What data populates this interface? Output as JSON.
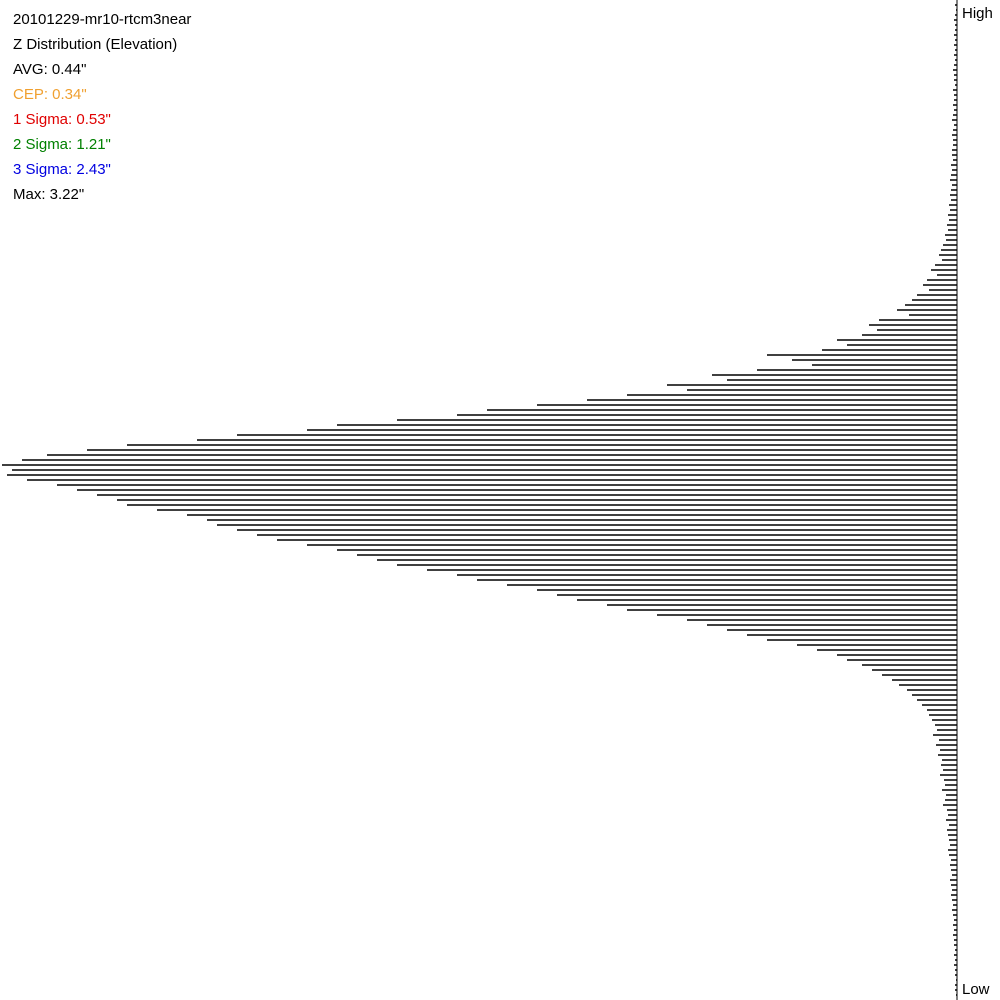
{
  "chart_data": {
    "type": "bar",
    "orientation": "horizontal",
    "title": "20101229-mr10-rtcm3near",
    "subtitle": "Z Distribution (Elevation)",
    "stats": [
      {
        "text": "AVG: 0.44\"",
        "color": "#000000"
      },
      {
        "text": "CEP: 0.34\"",
        "color": "#f0a030"
      },
      {
        "text": "1 Sigma: 0.53\"",
        "color": "#e00000"
      },
      {
        "text": "2 Sigma: 1.21\"",
        "color": "#008000"
      },
      {
        "text": "3 Sigma: 2.43\"",
        "color": "#0000e0"
      },
      {
        "text": "Max: 3.22\"",
        "color": "#000000"
      }
    ],
    "axis_top_label": "High",
    "axis_bottom_label": "Low",
    "color": "#000000",
    "xlim": [
      0,
      957
    ],
    "values": [
      2,
      1,
      2,
      3,
      2,
      2,
      3,
      2,
      3,
      2,
      3,
      2,
      3,
      4,
      3,
      3,
      2,
      4,
      3,
      3,
      4,
      3,
      4,
      5,
      3,
      4,
      5,
      4,
      4,
      5,
      5,
      4,
      6,
      5,
      6,
      7,
      5,
      6,
      7,
      6,
      8,
      7,
      9,
      8,
      10,
      9,
      12,
      11,
      14,
      16,
      18,
      15,
      22,
      26,
      20,
      30,
      34,
      28,
      40,
      45,
      52,
      60,
      48,
      78,
      88,
      80,
      95,
      120,
      110,
      135,
      190,
      165,
      145,
      200,
      245,
      230,
      290,
      270,
      330,
      370,
      420,
      470,
      500,
      560,
      620,
      650,
      720,
      760,
      830,
      870,
      910,
      935,
      955,
      945,
      950,
      930,
      900,
      880,
      860,
      840,
      830,
      800,
      770,
      750,
      740,
      720,
      700,
      680,
      650,
      620,
      600,
      580,
      560,
      530,
      500,
      480,
      450,
      420,
      400,
      380,
      350,
      330,
      300,
      270,
      250,
      230,
      210,
      190,
      160,
      140,
      120,
      110,
      95,
      85,
      75,
      65,
      58,
      50,
      45,
      40,
      35,
      30,
      28,
      25,
      22,
      20,
      24,
      18,
      21,
      17,
      19,
      15,
      16,
      14,
      17,
      13,
      12,
      15,
      11,
      12,
      14,
      10,
      9,
      11,
      8,
      10,
      9,
      8,
      7,
      9,
      8,
      6,
      7,
      6,
      5,
      7,
      6,
      5,
      6,
      5,
      4,
      5,
      4,
      3,
      4,
      3,
      4,
      3,
      3,
      2,
      3,
      2,
      3,
      2,
      2,
      1,
      2,
      2,
      1
    ]
  }
}
